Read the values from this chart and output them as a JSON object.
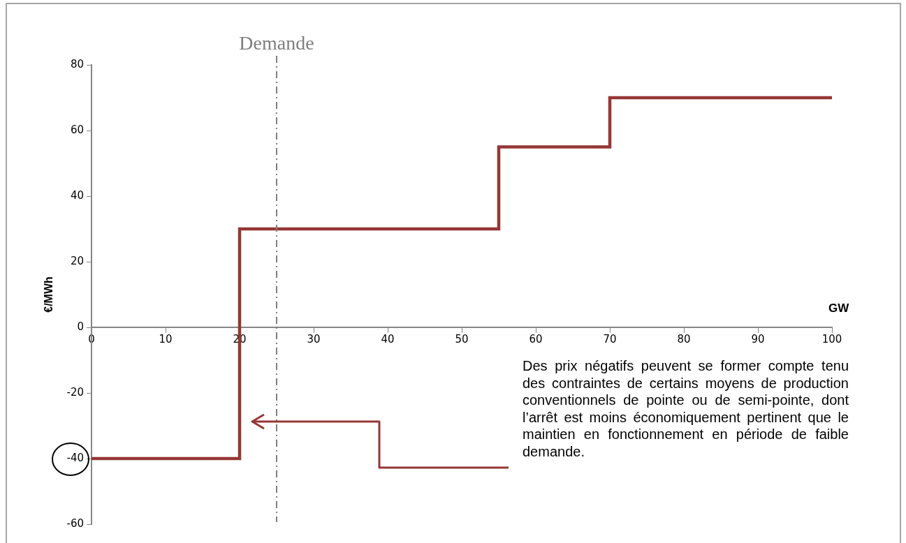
{
  "chart_data": {
    "type": "step",
    "x": [
      0,
      20,
      55,
      70,
      100
    ],
    "series": [
      {
        "color": "#953735",
        "values": [
          -40,
          30,
          55,
          70,
          70
        ]
      }
    ],
    "xlim": [
      0,
      100
    ],
    "xticks": [
      0,
      10,
      20,
      30,
      40,
      50,
      60,
      70,
      80,
      90,
      100
    ],
    "ylim": [
      -60,
      80
    ],
    "yticks": [
      -60,
      -40,
      -20,
      0,
      20,
      40,
      60,
      80
    ],
    "xlabel": "GW",
    "ylabel": "€/MWh",
    "marker": "none",
    "ref_lines": [
      {
        "axis": "x",
        "value": 25,
        "label": "Demande",
        "color": "#7f7f7f",
        "line_style": "dashdot"
      }
    ],
    "annotations": [
      "Des prix négatifs peuvent se former compte tenu des contraintes de certains moyens de production conventionnels de pointe ou de semi-pointe, dont l’arrêt est moins économiquement pertinent que le maintien en fonctionnement en période de faible demande."
    ]
  }
}
